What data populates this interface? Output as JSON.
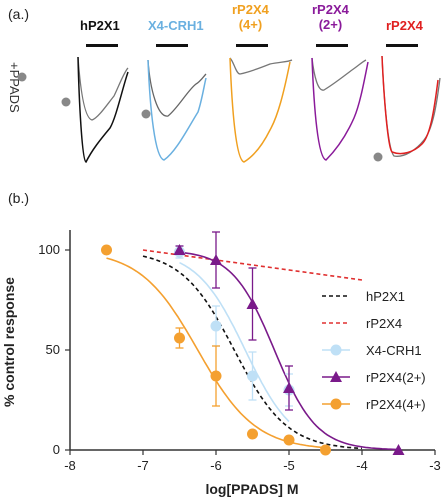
{
  "panel_a": {
    "label": "(a.)",
    "side_label": "+PPADS",
    "traces": [
      {
        "title": "hP2X1",
        "color": "#111111"
      },
      {
        "title": "X4-CRH1",
        "color": "#6ab0e0"
      },
      {
        "title": "rP2X4\n(4+)",
        "color": "#f0a020"
      },
      {
        "title": "rP2X4\n(2+)",
        "color": "#8a1a9a"
      },
      {
        "title": "rP2X4",
        "color": "#e02020"
      }
    ],
    "ppads_color": "#777777"
  },
  "panel_b": {
    "label": "(b.)"
  },
  "chart_data": {
    "type": "scatter",
    "xlabel": "log[PPADS] M",
    "ylabel": "% control response",
    "xlim": [
      -8,
      -3
    ],
    "ylim": [
      0,
      110
    ],
    "xticks": [
      "-8",
      "-7",
      "-6",
      "-5",
      "-4",
      "-3"
    ],
    "yticks": [
      "0",
      "50",
      "100"
    ],
    "legend_position": "right",
    "series": [
      {
        "name": "hP2X1",
        "style": "dashed",
        "color": "#111111",
        "ic50_log": -5.75,
        "hill": 1.2
      },
      {
        "name": "rP2X4",
        "style": "dashed",
        "color": "#e03030",
        "x": [
          -7.0,
          -4.0
        ],
        "y": [
          100,
          85
        ]
      },
      {
        "name": "X4-CRH1",
        "style": "marker-circle",
        "color": "#bfe0f6",
        "ic50_log": -5.6,
        "hill": 1.3,
        "x": [
          -6.5,
          -6.0,
          -5.5,
          -5.0
        ],
        "y": [
          99,
          62,
          37,
          30
        ],
        "err": [
          3,
          10,
          12,
          8
        ]
      },
      {
        "name": "rP2X4(2+)",
        "style": "marker-triangle",
        "color": "#7a1a8a",
        "ic50_log": -5.2,
        "hill": 1.5,
        "x": [
          -6.5,
          -6.0,
          -5.5,
          -5.0,
          -3.5
        ],
        "y": [
          100,
          95,
          73,
          31,
          0
        ],
        "err": [
          2,
          14,
          18,
          11,
          0
        ]
      },
      {
        "name": "rP2X4(4+)",
        "style": "marker-circle",
        "color": "#f4a030",
        "ic50_log": -6.25,
        "hill": 1.1,
        "x": [
          -7.5,
          -6.5,
          -6.0,
          -5.5,
          -5.0,
          -4.5
        ],
        "y": [
          100,
          56,
          37,
          8,
          5,
          0
        ],
        "err": [
          0,
          5,
          15,
          0,
          0,
          0
        ]
      }
    ]
  }
}
